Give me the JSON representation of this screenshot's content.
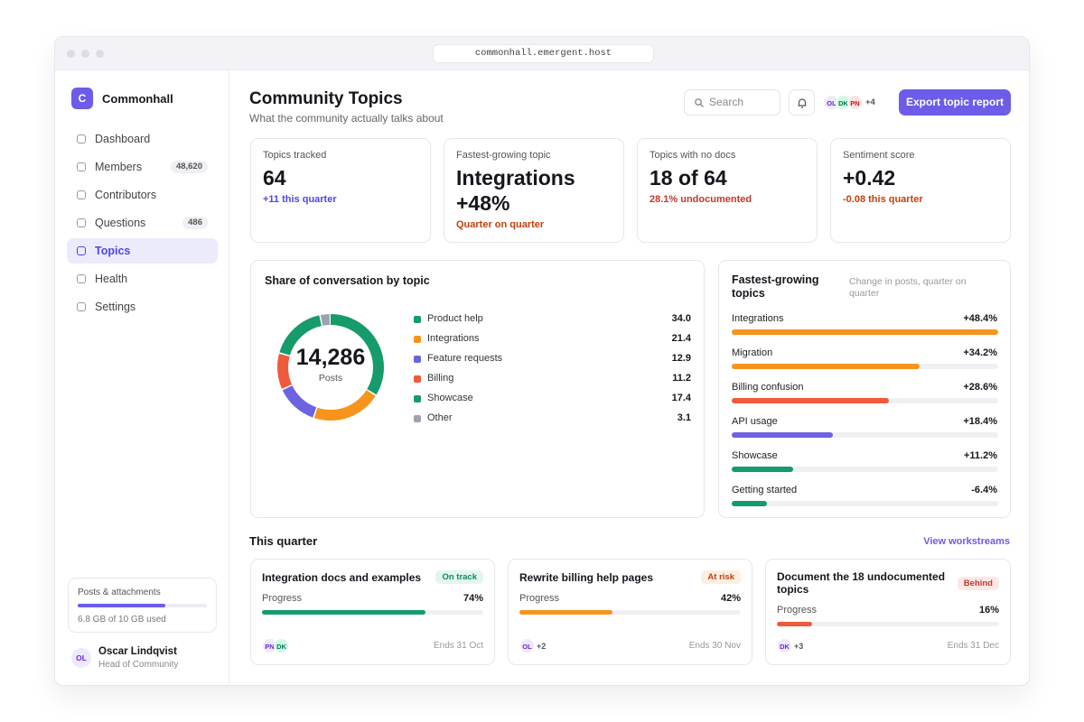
{
  "browser": {
    "url": "commonhall.emergent.host"
  },
  "sidebar": {
    "brand": {
      "initial": "C",
      "name": "Commonhall"
    },
    "nav": [
      {
        "label": "Dashboard"
      },
      {
        "label": "Members",
        "badge": "48,620"
      },
      {
        "label": "Contributors"
      },
      {
        "label": "Questions",
        "badge": "486"
      },
      {
        "label": "Topics",
        "active": true
      },
      {
        "label": "Health"
      },
      {
        "label": "Settings"
      }
    ],
    "storage": {
      "label": "Posts & attachments",
      "used": 6.8,
      "capacity": 10,
      "caption": "6.8 GB of 10 GB used",
      "color": "#6c5ce7"
    },
    "user": {
      "initials": "OL",
      "name": "Oscar Lindqvist",
      "role": "Head of Community"
    }
  },
  "header": {
    "title": "Community Topics",
    "subtitle": "What the community actually talks about",
    "search": "Search",
    "avatars": [
      "OL",
      "DK",
      "PN"
    ],
    "more": "+4",
    "button": "Export topic report"
  },
  "kpis": [
    {
      "label": "Topics tracked",
      "value": "64",
      "delta": "+11 this quarter",
      "delta_color": "#4f46e5"
    },
    {
      "label": "Fastest-growing topic",
      "value": "Integrations +48%",
      "delta": "Quarter on quarter",
      "delta_color": "#c2410c"
    },
    {
      "label": "Topics with no docs",
      "value": "18 of 64",
      "delta": "28.1% undocumented",
      "delta_color": "#c0392b"
    },
    {
      "label": "Sentiment score",
      "value": "+0.42",
      "delta": "-0.08 this quarter",
      "delta_color": "#c2410c"
    }
  ],
  "share": {
    "type": "donut",
    "title": "Share of conversation by topic",
    "total": "14,286",
    "total_label": "Posts",
    "categories": [
      "Product help",
      "Integrations",
      "Feature requests",
      "Billing",
      "Showcase",
      "Other"
    ],
    "values": [
      34,
      21.4,
      12.9,
      11.2,
      17.4,
      3.1
    ],
    "value_labels": [
      "34.0",
      "21.4",
      "12.9",
      "11.2",
      "17.4",
      "3.1"
    ],
    "colors": [
      "#169b6b",
      "#f7941d",
      "#6c63e0",
      "#f05a3c",
      "#169b6b",
      "#9ca3af"
    ]
  },
  "growth": {
    "type": "bar",
    "title": "Fastest-growing topics",
    "subtitle": "Change in posts, quarter on quarter",
    "categories": [
      "Integrations",
      "Migration",
      "Billing confusion",
      "API usage",
      "Showcase",
      "Getting started"
    ],
    "values": [
      48.4,
      34.2,
      28.6,
      18.4,
      11.2,
      -6.4
    ],
    "value_labels": [
      "+48.4%",
      "+34.2%",
      "+28.6%",
      "+18.4%",
      "+11.2%",
      "-6.4%"
    ],
    "colors": [
      "#f7941d",
      "#f7941d",
      "#f05a3c",
      "#6c63e0",
      "#169b6b",
      "#169b6b"
    ]
  },
  "quarter": {
    "title": "This quarter",
    "link": "View workstreams",
    "cards": [
      {
        "title": "Integration docs and examples",
        "status": "On track",
        "status_color": "#0f8a5f",
        "status_bg": "#e3f6ee",
        "progress_text": "Progress",
        "progress": 74,
        "progress_label": "74%",
        "color": "#169b6b",
        "avatars": [
          "PN",
          "DK"
        ],
        "ends": "Ends 31 Oct"
      },
      {
        "title": "Rewrite billing help pages",
        "status": "At risk",
        "status_color": "#c2410c",
        "status_bg": "#fdeee2",
        "progress_text": "Progress",
        "progress": 42,
        "progress_label": "42%",
        "color": "#f7941d",
        "avatars": [
          "OL"
        ],
        "more": "+2",
        "ends": "Ends 30 Nov"
      },
      {
        "title": "Document the 18 undocumented topics",
        "status": "Behind",
        "status_color": "#c0392b",
        "status_bg": "#fde8e6",
        "progress_text": "Progress",
        "progress": 16,
        "progress_label": "16%",
        "color": "#f05a3c",
        "avatars": [
          "DK"
        ],
        "more": "+3",
        "ends": "Ends 31 Dec"
      }
    ]
  }
}
